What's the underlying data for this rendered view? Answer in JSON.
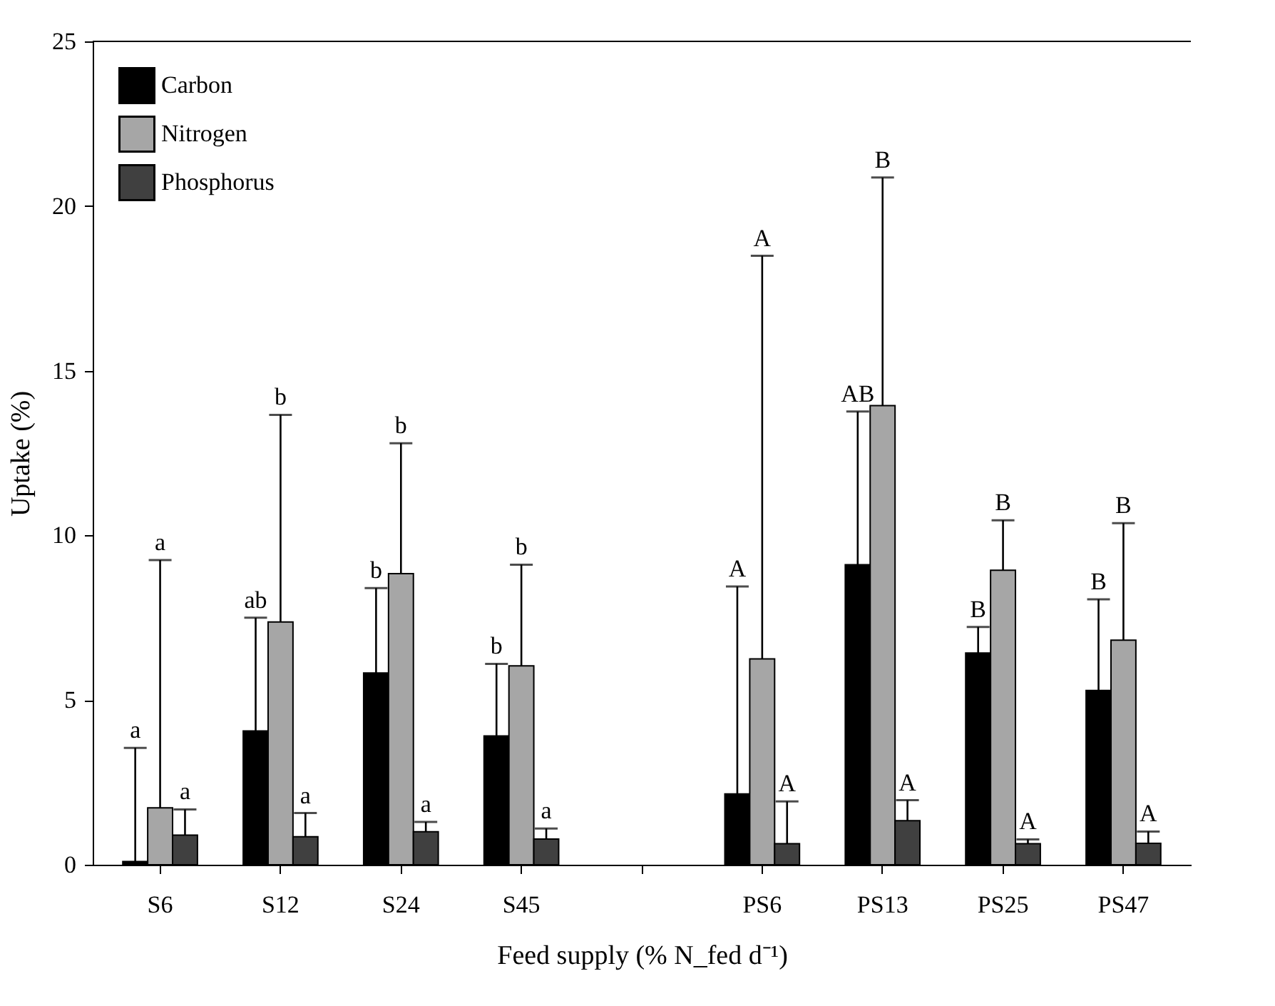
{
  "chart_data": {
    "type": "bar",
    "xlabel": "Feed supply (% N_fed d⁻¹)",
    "ylabel": "Uptake (%)",
    "categories": [
      "S6",
      "S12",
      "S24",
      "S45",
      null,
      "PS6",
      "PS13",
      "PS25",
      "PS47"
    ],
    "series": [
      {
        "name": "Carbon",
        "color": "#000000",
        "values": [
          0.1,
          4.06,
          5.82,
          3.91,
          null,
          2.15,
          9.11,
          6.43,
          5.29
        ],
        "errors": [
          [
            0.1,
            3.55
          ],
          [
            4.06,
            7.5
          ],
          [
            5.82,
            8.4
          ],
          [
            3.91,
            6.1
          ],
          null,
          [
            2.15,
            8.45
          ],
          [
            9.11,
            13.76
          ],
          [
            6.43,
            7.22
          ],
          [
            5.29,
            8.06
          ]
        ]
      },
      {
        "name": "Nitrogen",
        "color": "#a6a6a6",
        "values": [
          1.73,
          7.37,
          8.84,
          6.04,
          null,
          6.25,
          13.94,
          8.94,
          6.82
        ],
        "errors": [
          [
            1.73,
            9.25
          ],
          [
            7.37,
            13.66
          ],
          [
            8.84,
            12.8
          ],
          [
            6.04,
            9.11
          ],
          null,
          [
            6.25,
            18.49
          ],
          [
            13.94,
            20.87
          ],
          [
            8.94,
            10.46
          ],
          [
            6.82,
            10.37
          ]
        ]
      },
      {
        "name": "Phosphorus",
        "color": "#404040",
        "values": [
          0.9,
          0.85,
          1.0,
          0.78,
          null,
          0.64,
          1.34,
          0.64,
          0.65
        ],
        "errors": [
          [
            0.9,
            1.68
          ],
          [
            0.85,
            1.57
          ],
          [
            1.0,
            1.3
          ],
          [
            0.78,
            1.1
          ],
          null,
          [
            0.64,
            1.92
          ],
          [
            1.34,
            1.96
          ],
          [
            0.64,
            0.77
          ],
          [
            0.65,
            1.01
          ]
        ]
      }
    ],
    "annotations": [
      "a",
      "a",
      "a",
      "ab",
      "b",
      "a",
      "b",
      "b",
      "a",
      "b",
      "b",
      "a",
      "A",
      "A",
      "A",
      "AB",
      "B",
      "A",
      "B",
      "B",
      "A",
      "B",
      "B",
      "A"
    ],
    "ylim": [
      0,
      25
    ],
    "yticks": [
      0,
      5,
      10,
      15,
      20,
      25
    ],
    "grid": false,
    "legend": "top left"
  }
}
